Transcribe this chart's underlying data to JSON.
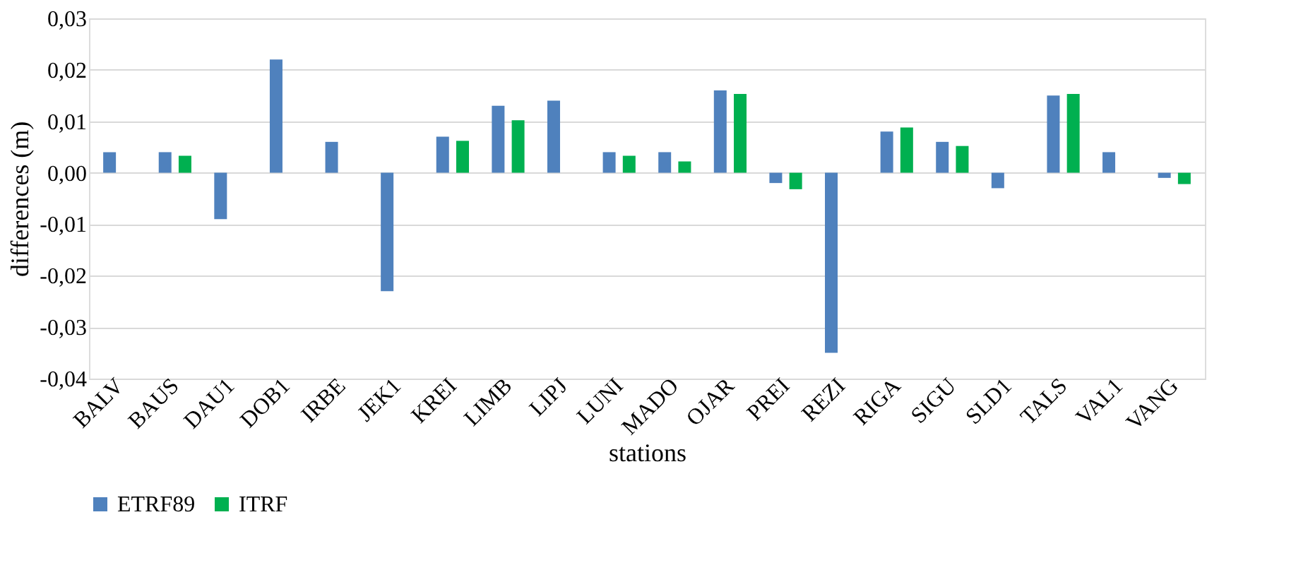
{
  "chart_data": {
    "type": "bar",
    "xlabel": "stations",
    "ylabel": "differences (m)",
    "categories": [
      "BALV",
      "BAUS",
      "DAU1",
      "DOB1",
      "IRBE",
      "JEK1",
      "KREI",
      "LIMB",
      "LIPJ",
      "LUNI",
      "MADO",
      "OJAR",
      "PREI",
      "REZI",
      "RIGA",
      "SIGU",
      "SLD1",
      "TALS",
      "VAL1",
      "VANG"
    ],
    "series": [
      {
        "name": "ETRF89",
        "color": "#4f81bd",
        "values": [
          0.004,
          0.004,
          -0.009,
          0.022,
          0.006,
          -0.023,
          0.007,
          0.013,
          0.014,
          0.004,
          0.004,
          0.016,
          -0.002,
          -0.035,
          0.008,
          0.006,
          -0.003,
          0.015,
          0.004,
          -0.001
        ]
      },
      {
        "name": "ITRF",
        "color": "#00b050",
        "values": [
          null,
          0.0033,
          null,
          null,
          null,
          null,
          0.0062,
          0.0102,
          null,
          0.0033,
          0.0022,
          0.0153,
          -0.0032,
          null,
          0.0088,
          0.0052,
          null,
          0.0153,
          null,
          -0.0022
        ]
      }
    ],
    "ylim": [
      -0.04,
      0.03
    ],
    "yticks": [
      {
        "value": -0.04,
        "label": "-0,04"
      },
      {
        "value": -0.03,
        "label": "-0,03"
      },
      {
        "value": -0.02,
        "label": "-0,02"
      },
      {
        "value": -0.01,
        "label": "-0,01"
      },
      {
        "value": 0,
        "label": "0,00"
      },
      {
        "value": 0.01,
        "label": "0,01"
      },
      {
        "value": 0.02,
        "label": "0,02"
      },
      {
        "value": 0.03,
        "label": "0,03"
      }
    ],
    "grid": "y",
    "legend": "bottom"
  }
}
